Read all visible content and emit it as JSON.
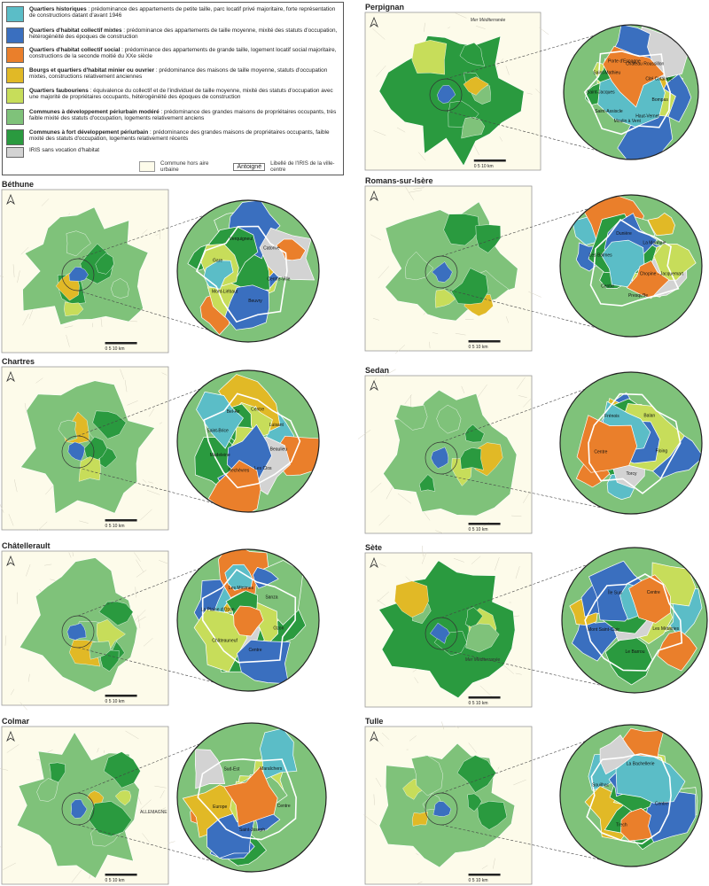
{
  "colors": {
    "historiques": "#5bbdc7",
    "mixtes": "#3a6fbf",
    "social": "#ea7f2b",
    "minier": "#e1b926",
    "faubouriens": "#c7dd5a",
    "modere": "#7fc27a",
    "fort": "#2a9a3f",
    "sans_habitat": "#d3d3d3",
    "hors_aire": "#fdfbea"
  },
  "legend": {
    "items": [
      {
        "key": "historiques",
        "title": "Quartiers historiques",
        "desc": " : prédominance des appartements de petite taille, parc locatif privé majoritaire, forte représentation de constructions datant d'avant 1946"
      },
      {
        "key": "mixtes",
        "title": "Quartiers d'habitat collectif mixtes",
        "desc": " : prédominance des appartements de taille moyenne, mixité des statuts d'occupation, hétérogénéité des époques de construction"
      },
      {
        "key": "social",
        "title": "Quartiers d'habitat collectif social",
        "desc": " : prédominance des appartements de grande taille, logement locatif social majoritaire, constructions de la seconde moitié du XXe siècle"
      },
      {
        "key": "minier",
        "title": "Bourgs et quartiers d'habitat minier ou ouvrier",
        "desc": " : prédominance des maisons de taille moyenne, statuts d'occupation mixtes, constructions relativement anciennes"
      },
      {
        "key": "faubouriens",
        "title": "Quartiers faubouriens",
        "desc": " : équivalence du collectif et de l'individuel de taille moyenne, mixité des statuts d'occupation avec une majorité de propriétaires occupants, hétérogénéité des époques de construction"
      },
      {
        "key": "modere",
        "title": "Communes à développement périurbain modéré",
        "desc": " : prédominance des grandes maisons de propriétaires occupants, très faible mixité des statuts d'occupation, logements relativement anciens"
      },
      {
        "key": "fort",
        "title": "Communes à fort développement périurbain",
        "desc": " : prédominance des grandes maisons de propriétaires occupants, faible mixité des statuts d'occupation, logements relativement récents"
      },
      {
        "key": "sans_habitat",
        "title": "",
        "desc": "IRIS sans vocation d'habitat"
      }
    ],
    "hors_label": "Commune hors aire urbaine",
    "antoigne_box": "Antoigné",
    "antoigne_label": "Libellé de l'IRIS de la ville-centre"
  },
  "panels": [
    {
      "id": "perpignan",
      "title": "Perpignan",
      "sea": "Mer Méditerranée",
      "scale": "0    5    10 km",
      "zoom_labels": [
        "Bompas",
        "Haut-Vernet",
        "Moulin à Vent",
        "Saint-Assiscle",
        "Saint-Jacques",
        "Saint-Mathieu",
        "Porte d'Espagne",
        "Château Roussillon",
        "Cité Catalane"
      ]
    },
    {
      "id": "bethune",
      "title": "Béthune",
      "scale": "0    5    10 km",
      "zoom_labels": [
        "Centre-Ville",
        "Beuvry",
        "Mont-Liébaut",
        "Gare",
        "Verquigneul",
        "Catorive"
      ]
    },
    {
      "id": "romans",
      "title": "Romans-sur-Isère",
      "scale": "0    5    10 km",
      "zoom_labels": [
        "Chopine - Jacquemart",
        "Presqu'île",
        "Centre",
        "Les Balmes",
        "Dunière",
        "La Monnaie"
      ]
    },
    {
      "id": "chartres",
      "title": "Chartres",
      "scale": "0    5    10 km",
      "zoom_labels": [
        "Beaulieu",
        "Les Clos",
        "Rechèvres",
        "Madeleine",
        "Saint-Brice",
        "Bel-Air",
        "Centre",
        "Luisant"
      ]
    },
    {
      "id": "sedan",
      "title": "Sedan",
      "scale": "0    5    10 km",
      "zoom_labels": [
        "Floing",
        "Torcy",
        "Centre",
        "Frénois",
        "Balan"
      ]
    },
    {
      "id": "chatellerault",
      "title": "Châtellerault",
      "scale": "0    5    10 km",
      "zoom_labels": [
        "Ozon",
        "Centre",
        "Châteauneuf",
        "La Plaine d'Ozon",
        "Les Minimes",
        "Sanza"
      ]
    },
    {
      "id": "sete",
      "title": "Sète",
      "sea": "Mer Méditerranée",
      "scale": "0    5    10 km",
      "zoom_labels": [
        "Les Métairies",
        "Le Barrou",
        "Mont Saint-Clair",
        "Île Sud",
        "Centre"
      ]
    },
    {
      "id": "colmar",
      "title": "Colmar",
      "extra": "ALLEMAGNE",
      "scale": "0    5    10 km",
      "zoom_labels": [
        "Centre",
        "Saint-Joseph",
        "Europe",
        "Sud-Est",
        "Maraîchers"
      ]
    },
    {
      "id": "tulle",
      "title": "Tulle",
      "scale": "0    5    10 km",
      "zoom_labels": [
        "Centre",
        "Trech",
        "Souilhac",
        "La Bachellerie"
      ]
    }
  ]
}
